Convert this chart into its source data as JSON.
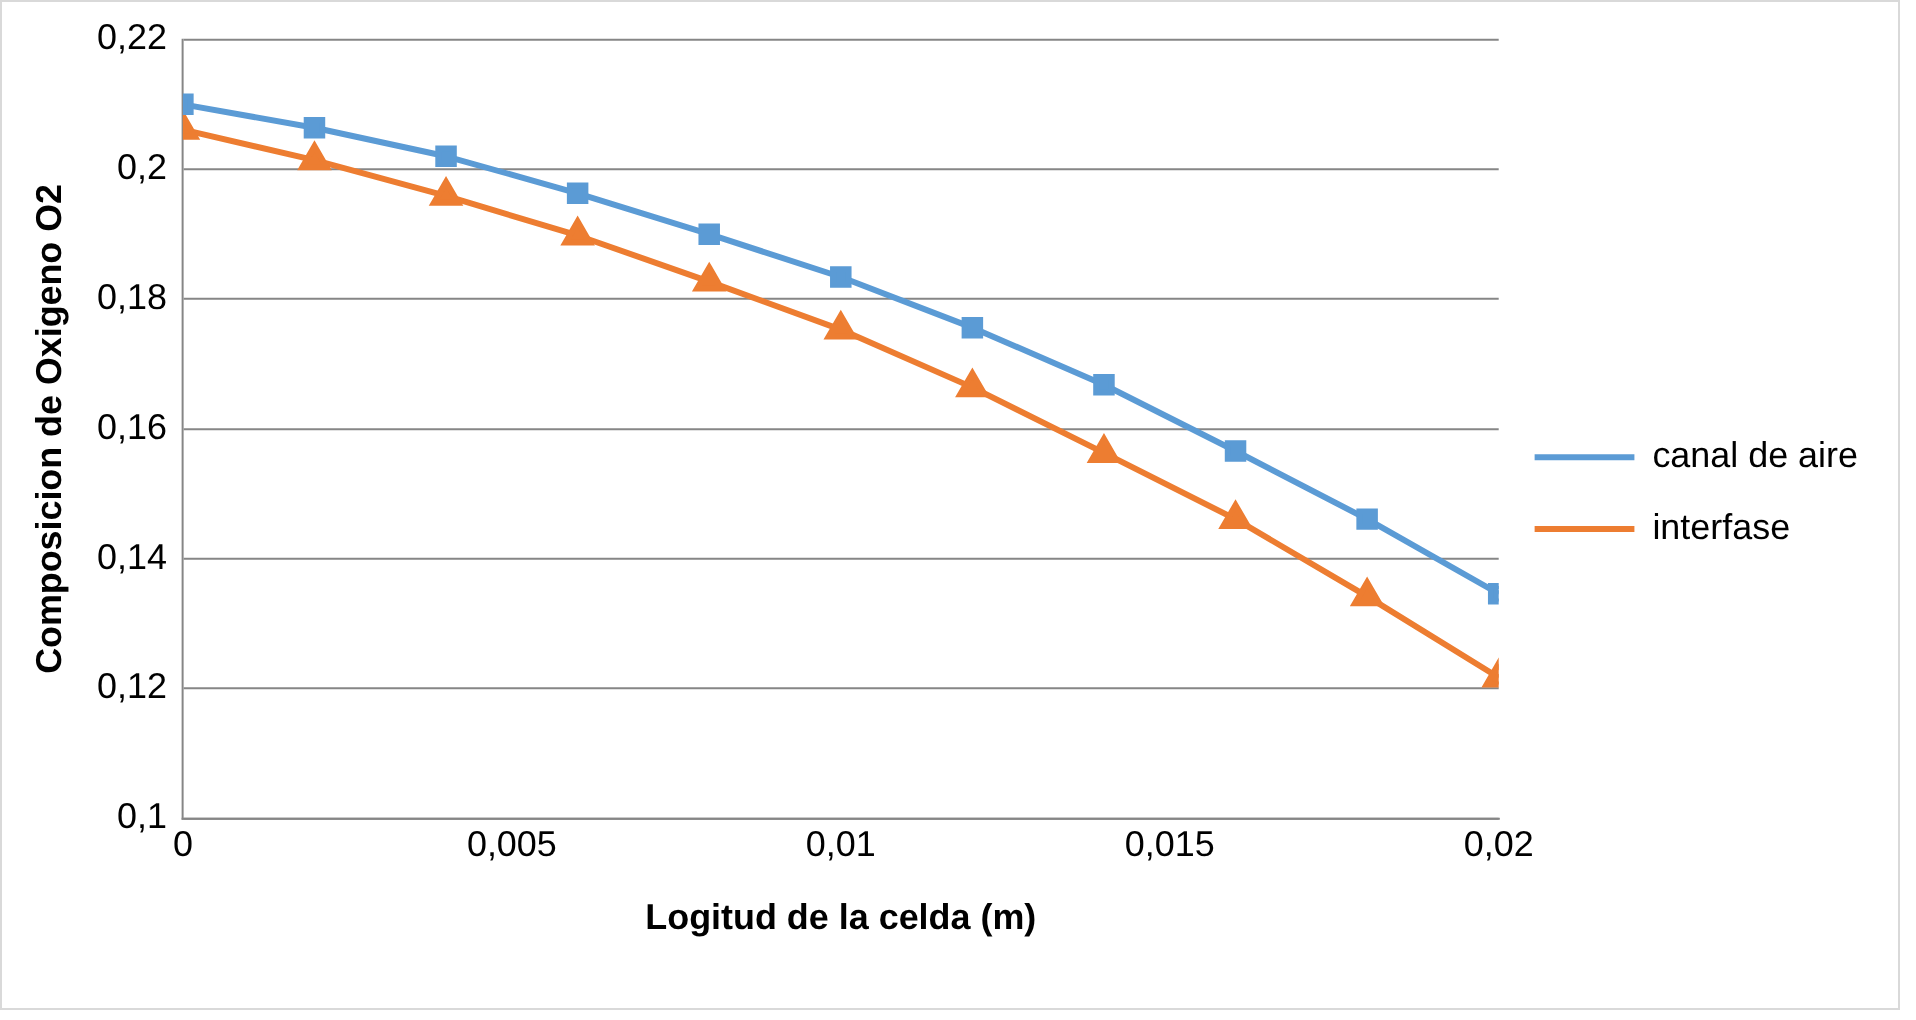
{
  "chart_data": {
    "type": "line",
    "xlabel": "Logitud de la celda (m)",
    "ylabel": "Composicion de Oxigeno O2",
    "x": [
      0,
      0.002,
      0.004,
      0.006,
      0.008,
      0.01,
      0.012,
      0.014,
      0.016,
      0.018,
      0.02
    ],
    "series": [
      {
        "name": "canal de aire",
        "color": "#5b9bd5",
        "marker": "square",
        "values": [
          0.21,
          0.2064,
          0.202,
          0.1963,
          0.19,
          0.1834,
          0.1756,
          0.1668,
          0.1566,
          0.1461,
          0.1346
        ]
      },
      {
        "name": "interfase",
        "color": "#ed7d31",
        "marker": "triangle",
        "values": [
          0.2061,
          0.2014,
          0.1959,
          0.1898,
          0.1827,
          0.1753,
          0.1664,
          0.1563,
          0.1461,
          0.1342,
          0.1217
        ]
      }
    ],
    "xlim": [
      0,
      0.02
    ],
    "xticks": [
      {
        "value": 0,
        "label": "0"
      },
      {
        "value": 0.005,
        "label": "0,005"
      },
      {
        "value": 0.01,
        "label": "0,01"
      },
      {
        "value": 0.015,
        "label": "0,015"
      },
      {
        "value": 0.02,
        "label": "0,02"
      }
    ],
    "ylim": [
      0.1,
      0.22
    ],
    "yticks": [
      {
        "value": 0.1,
        "label": "0,1"
      },
      {
        "value": 0.12,
        "label": "0,12"
      },
      {
        "value": 0.14,
        "label": "0,14"
      },
      {
        "value": 0.16,
        "label": "0,16"
      },
      {
        "value": 0.18,
        "label": "0,18"
      },
      {
        "value": 0.2,
        "label": "0,2"
      },
      {
        "value": 0.22,
        "label": "0,22"
      }
    ],
    "grid": "y",
    "legend": "right"
  }
}
